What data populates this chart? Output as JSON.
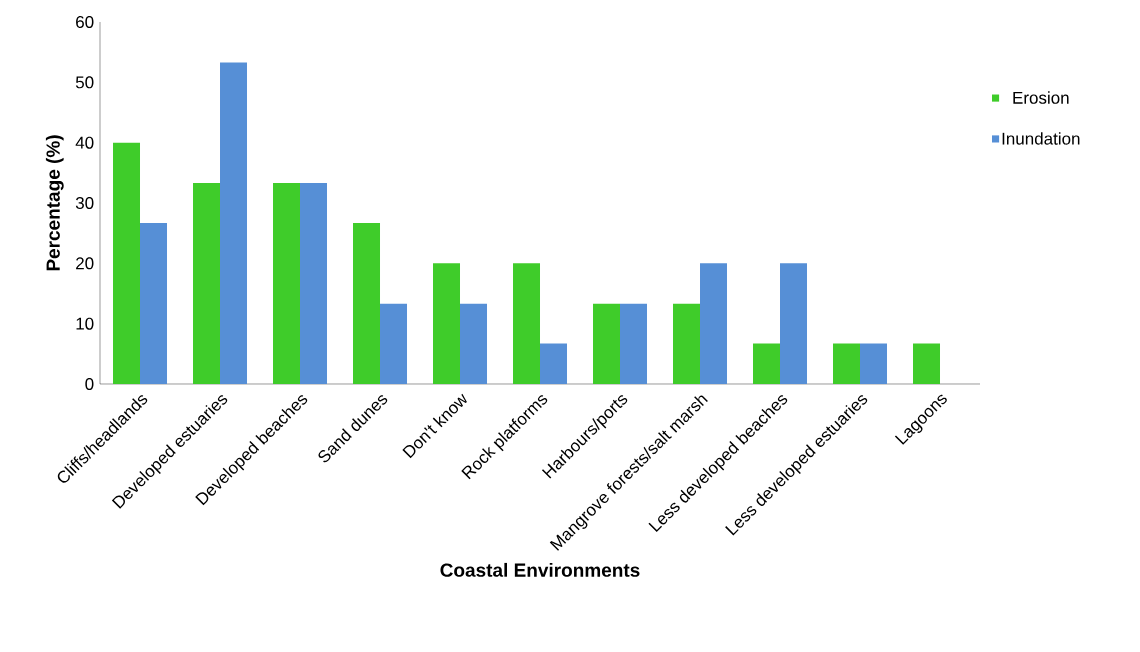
{
  "chart_data": {
    "type": "bar",
    "xlabel": "Coastal Environments",
    "ylabel": "Percentage (%)",
    "categories": [
      "Cliffs/headlands",
      "Developed estuaries",
      "Developed beaches",
      "Sand dunes",
      "Don't know",
      "Rock platforms",
      "Harbours/ports",
      "Mangrove forests/salt marsh",
      "Less developed beaches",
      "Less developed estuaries",
      "Lagoons"
    ],
    "series": [
      {
        "name": "Erosion",
        "color": "#3fcc2a",
        "values": [
          40,
          33.3,
          33.3,
          26.7,
          20,
          20,
          13.3,
          13.3,
          6.7,
          6.7,
          6.7
        ]
      },
      {
        "name": "Inundation",
        "color": "#568fd6",
        "values": [
          26.7,
          53.3,
          33.3,
          13.3,
          13.3,
          6.7,
          13.3,
          20,
          20,
          6.7,
          null
        ]
      }
    ],
    "ylim": [
      0,
      60
    ],
    "yticks": [
      0,
      10,
      20,
      30,
      40,
      50,
      60
    ],
    "grid": false,
    "legend": "right"
  }
}
